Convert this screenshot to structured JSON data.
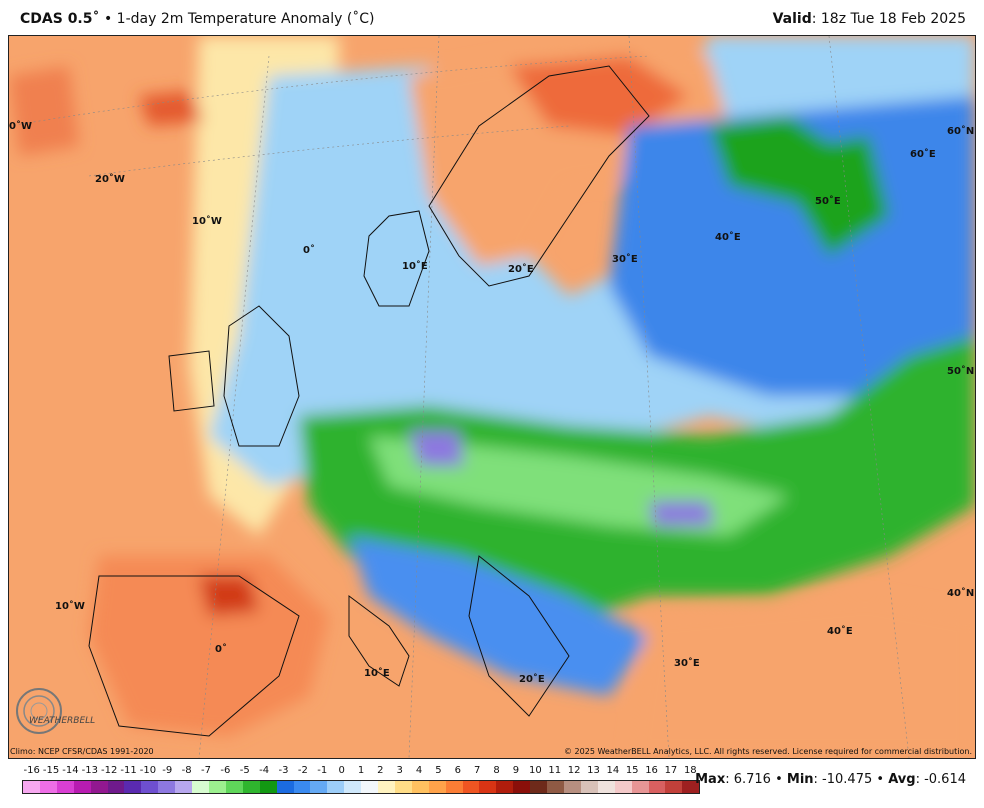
{
  "header": {
    "product": "CDAS 0.5˚",
    "bullet": "•",
    "title": "1-day 2m Temperature Anomaly (˚C)",
    "valid_label": "Valid",
    "valid_value": ": 18z Tue 18 Feb 2025"
  },
  "map": {
    "labels": [
      "0˚W",
      "20˚W",
      "10˚W",
      "0˚",
      "10˚E",
      "20˚E",
      "30˚E",
      "40˚E",
      "50˚E",
      "60˚E",
      "60˚N",
      "50˚N",
      "40˚N",
      "10˚W",
      "0˚",
      "10˚E",
      "20˚E",
      "30˚E",
      "40˚E"
    ]
  },
  "logo": {
    "text": "WEATHERBELL"
  },
  "footer": {
    "climo": "Climo: NCEP CFSR/CDAS 1991-2020",
    "copyright": "© 2025 WeatherBELL Analytics, LLC. All rights reserved. License required for commercial distribution.",
    "max_label": "Max",
    "max_value": ": 6.716",
    "min_label": "Min",
    "min_value": ": -10.475",
    "avg_label": "Avg",
    "avg_value": ": -0.614",
    "sep": " • "
  },
  "colorbar": {
    "ticks": [
      "-16",
      "-15",
      "-14",
      "-13",
      "-12",
      "-11",
      "-10",
      "-9",
      "-8",
      "-7",
      "-6",
      "-5",
      "-4",
      "-3",
      "-2",
      "-1",
      "0",
      "1",
      "2",
      "3",
      "4",
      "5",
      "6",
      "7",
      "8",
      "9",
      "10",
      "11",
      "12",
      "13",
      "14",
      "15",
      "16",
      "17",
      "18"
    ],
    "colors": [
      "#f7a8f0",
      "#ee6ee6",
      "#d93fd3",
      "#b81cb1",
      "#921890",
      "#6f1a8c",
      "#5a2ab0",
      "#6e4fd0",
      "#8d78e0",
      "#b7a7ee",
      "#d7fcd0",
      "#9cf08f",
      "#5fd65a",
      "#2fb52e",
      "#129812",
      "#1b6be0",
      "#3a8af0",
      "#64a9f4",
      "#9ccdf8",
      "#cfe8fb",
      "#f2f7fb",
      "#fff3c0",
      "#ffdd87",
      "#ffc160",
      "#ffa24a",
      "#fb7d35",
      "#ef5522",
      "#d83414",
      "#b01d0c",
      "#8a0f0a",
      "#6e2a1a",
      "#8f5a44",
      "#b78f80",
      "#d8c1b8",
      "#efe2dd",
      "#f4c9c9",
      "#e79595",
      "#d86060",
      "#c2403a",
      "#9e2020"
    ]
  }
}
